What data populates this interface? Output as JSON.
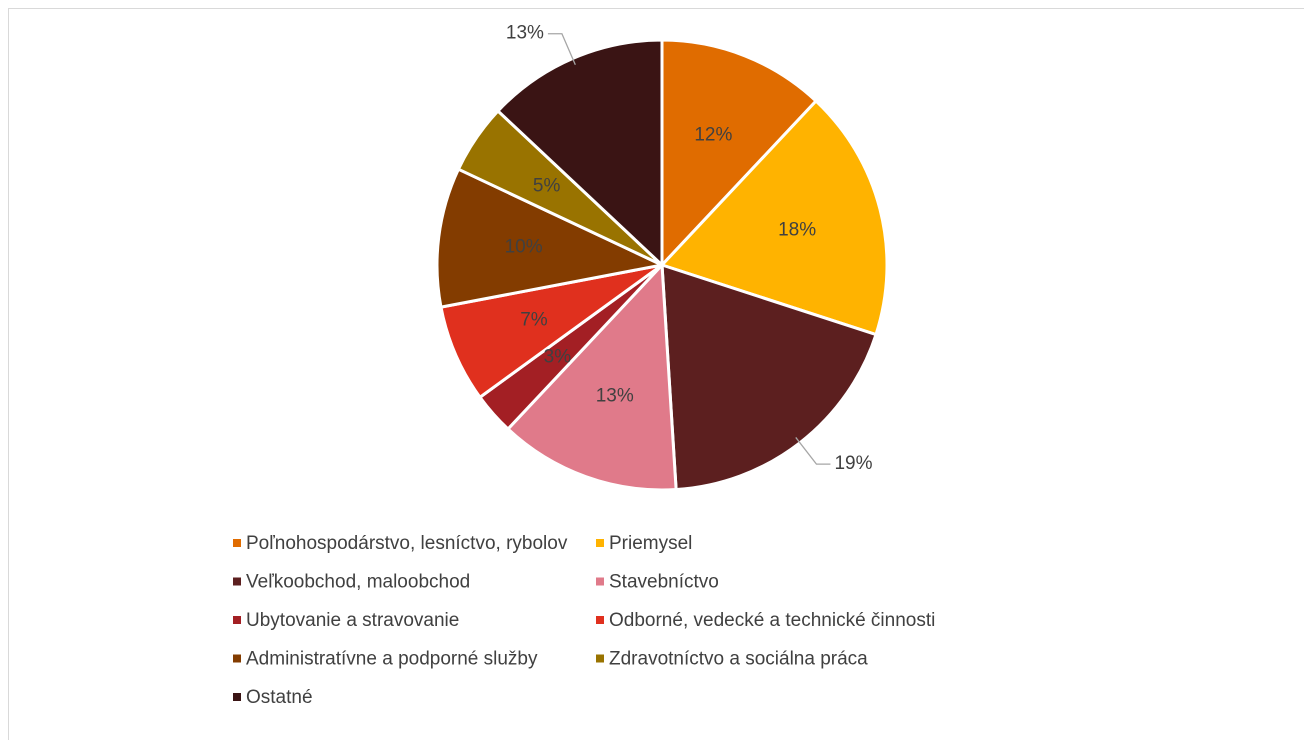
{
  "chart_data": {
    "type": "pie",
    "categories": [
      "Poľnohospodárstvo, lesníctvo, rybolov",
      "Priemysel",
      "Veľkoobchod, maloobchod",
      "Stavebníctvo",
      "Ubytovanie a stravovanie",
      "Odborné, vedecké a technické činnosti",
      "Administratívne a podporné služby",
      "Zdravotníctvo a sociálna práca",
      "Ostatné"
    ],
    "values": [
      12,
      18,
      19,
      13,
      3,
      7,
      10,
      5,
      13
    ],
    "value_labels": [
      "12%",
      "18%",
      "19%",
      "13%",
      "3%",
      "7%",
      "10%",
      "5%",
      "13%"
    ],
    "colors": [
      "#e06c00",
      "#ffb300",
      "#5c1f1f",
      "#e07a8a",
      "#a31f24",
      "#e0301e",
      "#833c00",
      "#997300",
      "#3a1414"
    ],
    "legend": "bottom"
  }
}
